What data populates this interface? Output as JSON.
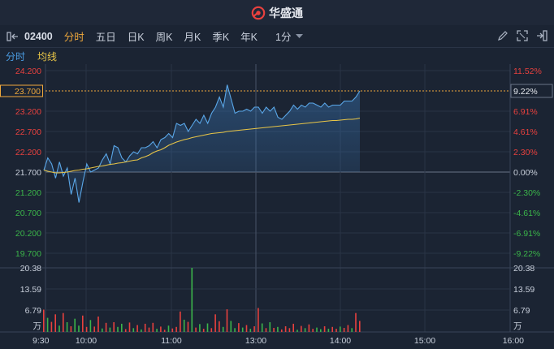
{
  "brand": {
    "name": "华盛通"
  },
  "toolbar": {
    "code": "02400",
    "tabs": [
      {
        "label": "分时",
        "active": true
      },
      {
        "label": "五日",
        "active": false
      },
      {
        "label": "日K",
        "active": false
      },
      {
        "label": "周K",
        "active": false
      },
      {
        "label": "月K",
        "active": false
      },
      {
        "label": "季K",
        "active": false
      },
      {
        "label": "年K",
        "active": false
      }
    ],
    "period": "1分"
  },
  "subtabs": {
    "time": "分时",
    "avg": "均线"
  },
  "colors": {
    "up": "#e8413e",
    "down": "#3bb54a",
    "price": "#5aa7e8",
    "avg": "#e8c547",
    "accent": "#f0a93c"
  },
  "chart_data": {
    "type": "line",
    "prev_close": 21.7,
    "current_price": "23.700",
    "current_pct": "9.22%",
    "price_ticks_left": [
      "24.200",
      "23.700",
      "23.200",
      "22.700",
      "22.200",
      "21.700",
      "21.200",
      "20.700",
      "20.200",
      "19.700"
    ],
    "pct_ticks_right": [
      "11.52%",
      "9.22%",
      "6.91%",
      "4.61%",
      "2.30%",
      "0.00%",
      "-2.30%",
      "-4.61%",
      "-6.91%",
      "-9.22%"
    ],
    "volume_ticks": [
      "20.38",
      "13.59",
      "6.79"
    ],
    "volume_unit": "万",
    "x_ticks": [
      "9:30",
      "10:00",
      "11:00",
      "13:00",
      "14:00",
      "15:00",
      "16:00"
    ],
    "series": [
      {
        "key": "price",
        "values": [
          21.75,
          22.05,
          21.9,
          21.55,
          21.95,
          21.6,
          21.8,
          21.15,
          21.55,
          20.95,
          21.45,
          21.9,
          21.7,
          21.75,
          21.8,
          22.0,
          22.15,
          21.9,
          22.35,
          22.3,
          22.05,
          21.95,
          22.1,
          22.2,
          22.15,
          22.3,
          22.3,
          22.35,
          22.45,
          22.3,
          22.5,
          22.55,
          22.65,
          22.55,
          22.9,
          22.85,
          22.9,
          22.7,
          22.85,
          23.0,
          22.9,
          23.1,
          22.9,
          23.15,
          23.3,
          23.55,
          23.3,
          23.85,
          23.5,
          23.15,
          23.2,
          23.2,
          23.25,
          23.2,
          23.3,
          23.3,
          23.15,
          23.3,
          23.2,
          23.3,
          23.05,
          23.0,
          23.1,
          23.2,
          23.35,
          23.25,
          23.35,
          23.3,
          23.4,
          23.4,
          23.35,
          23.3,
          23.4,
          23.3,
          23.35,
          23.35,
          23.35,
          23.45,
          23.45,
          23.45,
          23.55,
          23.7
        ]
      },
      {
        "key": "avg",
        "values": [
          21.75,
          21.72,
          21.7,
          21.68,
          21.68,
          21.69,
          21.7,
          21.72,
          21.74,
          21.75,
          21.77,
          21.78,
          21.8,
          21.82,
          21.84,
          21.85,
          21.87,
          21.89,
          21.9,
          21.92,
          21.93,
          21.95,
          21.97,
          21.99,
          22.0,
          22.05,
          22.08,
          22.12,
          22.18,
          22.22,
          22.25,
          22.3,
          22.36,
          22.4,
          22.44,
          22.47,
          22.5,
          22.52,
          22.55,
          22.57,
          22.59,
          22.61,
          22.63,
          22.65,
          22.66,
          22.67,
          22.68,
          22.7,
          22.71,
          22.72,
          22.73,
          22.74,
          22.75,
          22.76,
          22.77,
          22.78,
          22.79,
          22.8,
          22.81,
          22.82,
          22.83,
          22.84,
          22.85,
          22.86,
          22.87,
          22.88,
          22.89,
          22.9,
          22.91,
          22.92,
          22.93,
          22.94,
          22.95,
          22.96,
          22.97,
          22.97,
          22.98,
          22.99,
          23.0,
          23.0,
          23.01,
          23.03
        ]
      }
    ],
    "volume": [
      7.1,
      4.5,
      3.2,
      5.6,
      2.0,
      6.0,
      3.1,
      1.8,
      4.2,
      2.0,
      5.2,
      1.6,
      3.8,
      1.7,
      4.9,
      1.1,
      2.9,
      1.4,
      3.1,
      1.6,
      2.6,
      0.9,
      3.0,
      1.2,
      2.2,
      0.8,
      2.6,
      1.4,
      2.9,
      1.0,
      1.7,
      0.7,
      2.0,
      1.1,
      1.6,
      6.5,
      3.9,
      3.2,
      20.38,
      1.4,
      2.5,
      1.0,
      2.7,
      1.2,
      5.6,
      3.4,
      1.6,
      7.2,
      3.5,
      1.2,
      2.8,
      1.4,
      2.2,
      1.0,
      1.8,
      7.6,
      2.7,
      1.2,
      3.1,
      1.3,
      1.6,
      0.8,
      1.8,
      1.2,
      2.6,
      0.7,
      1.9,
      1.2,
      2.4,
      1.0,
      1.4,
      0.9,
      1.8,
      1.0,
      1.6,
      1.0,
      1.7,
      1.3,
      2.2,
      1.2,
      6.0,
      3.5
    ],
    "volume_dir": [
      "u",
      "d",
      "u",
      "u",
      "d",
      "u",
      "d",
      "u",
      "d",
      "d",
      "u",
      "u",
      "d",
      "u",
      "u",
      "d",
      "u",
      "d",
      "u",
      "d",
      "d",
      "u",
      "u",
      "d",
      "u",
      "d",
      "u",
      "u",
      "u",
      "d",
      "u",
      "u",
      "d",
      "u",
      "u",
      "u",
      "d",
      "u",
      "d",
      "u",
      "d",
      "u",
      "d",
      "u",
      "u",
      "u",
      "d",
      "u",
      "d",
      "d",
      "u",
      "d",
      "u",
      "d",
      "u",
      "u",
      "d",
      "u",
      "d",
      "u",
      "d",
      "u",
      "u",
      "u",
      "u",
      "d",
      "u",
      "d",
      "u",
      "u",
      "d",
      "d",
      "u",
      "d",
      "u",
      "u",
      "d",
      "u",
      "u",
      "d",
      "u",
      "u"
    ]
  }
}
